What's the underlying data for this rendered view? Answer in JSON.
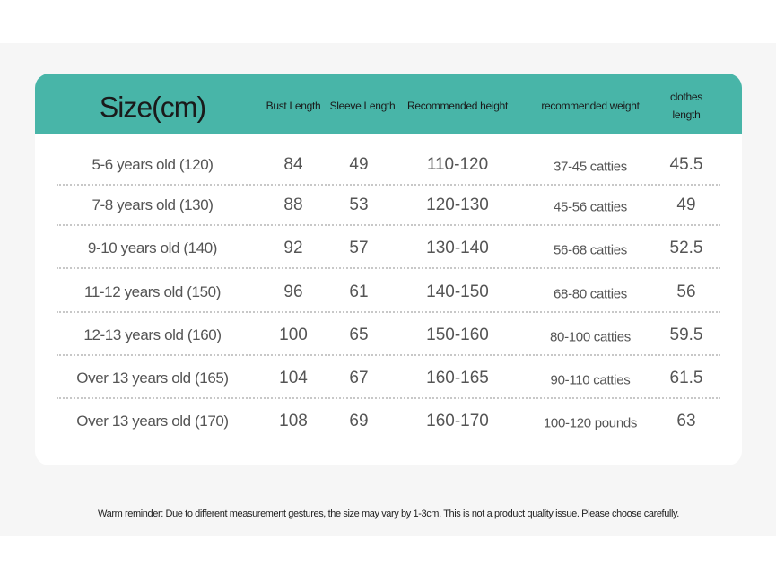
{
  "table": {
    "header": [
      "Size(cm)",
      "Bust Length",
      "Sleeve Length",
      "Recommended height",
      "recommended weight",
      "clothes length"
    ],
    "rows": [
      [
        "5-6 years old (120)",
        84,
        49,
        "110-120",
        "37-45 catties",
        45.5
      ],
      [
        "7-8 years old (130)",
        88,
        53,
        "120-130",
        "45-56 catties",
        49
      ],
      [
        "9-10 years old (140)",
        92,
        57,
        "130-140",
        "56-68 catties",
        52.5
      ],
      [
        "11-12 years old (150)",
        96,
        61,
        "140-150",
        "68-80 catties",
        56
      ],
      [
        "12-13 years old (160)",
        100,
        65,
        "150-160",
        "80-100 catties",
        59.5
      ],
      [
        "Over 13 years old (165)",
        104,
        67,
        "160-165",
        "90-110 catties",
        61.5
      ],
      [
        "Over 13 years old (170)",
        108,
        69,
        "160-170",
        "100-120 pounds",
        63
      ]
    ]
  },
  "note": "Warm reminder: Due to different measurement gestures, the size may vary by 1-3cm. This is not a product quality issue. Please choose carefully."
}
